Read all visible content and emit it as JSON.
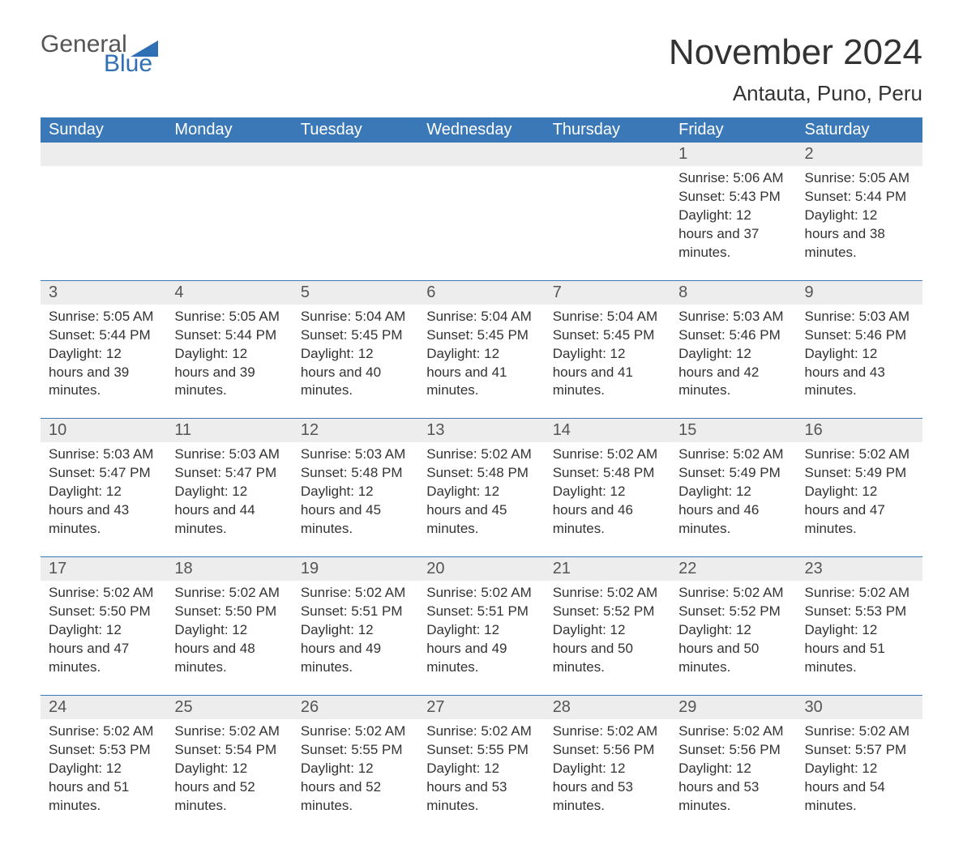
{
  "brand": {
    "word1": "General",
    "word2": "Blue",
    "word1_color": "#555555",
    "word2_color": "#2f6fb3",
    "triangle_color": "#2f6fb3"
  },
  "title": "November 2024",
  "location": "Antauta, Puno, Peru",
  "colors": {
    "header_bg": "#3b78b8",
    "header_text": "#ffffff",
    "daynum_bg": "#ededed",
    "border": "#3b78b8",
    "text": "#333333"
  },
  "day_headers": [
    "Sunday",
    "Monday",
    "Tuesday",
    "Wednesday",
    "Thursday",
    "Friday",
    "Saturday"
  ],
  "weeks": [
    [
      null,
      null,
      null,
      null,
      null,
      {
        "n": "1",
        "sunrise": "5:06 AM",
        "sunset": "5:43 PM",
        "daylight": "12 hours and 37 minutes."
      },
      {
        "n": "2",
        "sunrise": "5:05 AM",
        "sunset": "5:44 PM",
        "daylight": "12 hours and 38 minutes."
      }
    ],
    [
      {
        "n": "3",
        "sunrise": "5:05 AM",
        "sunset": "5:44 PM",
        "daylight": "12 hours and 39 minutes."
      },
      {
        "n": "4",
        "sunrise": "5:05 AM",
        "sunset": "5:44 PM",
        "daylight": "12 hours and 39 minutes."
      },
      {
        "n": "5",
        "sunrise": "5:04 AM",
        "sunset": "5:45 PM",
        "daylight": "12 hours and 40 minutes."
      },
      {
        "n": "6",
        "sunrise": "5:04 AM",
        "sunset": "5:45 PM",
        "daylight": "12 hours and 41 minutes."
      },
      {
        "n": "7",
        "sunrise": "5:04 AM",
        "sunset": "5:45 PM",
        "daylight": "12 hours and 41 minutes."
      },
      {
        "n": "8",
        "sunrise": "5:03 AM",
        "sunset": "5:46 PM",
        "daylight": "12 hours and 42 minutes."
      },
      {
        "n": "9",
        "sunrise": "5:03 AM",
        "sunset": "5:46 PM",
        "daylight": "12 hours and 43 minutes."
      }
    ],
    [
      {
        "n": "10",
        "sunrise": "5:03 AM",
        "sunset": "5:47 PM",
        "daylight": "12 hours and 43 minutes."
      },
      {
        "n": "11",
        "sunrise": "5:03 AM",
        "sunset": "5:47 PM",
        "daylight": "12 hours and 44 minutes."
      },
      {
        "n": "12",
        "sunrise": "5:03 AM",
        "sunset": "5:48 PM",
        "daylight": "12 hours and 45 minutes."
      },
      {
        "n": "13",
        "sunrise": "5:02 AM",
        "sunset": "5:48 PM",
        "daylight": "12 hours and 45 minutes."
      },
      {
        "n": "14",
        "sunrise": "5:02 AM",
        "sunset": "5:48 PM",
        "daylight": "12 hours and 46 minutes."
      },
      {
        "n": "15",
        "sunrise": "5:02 AM",
        "sunset": "5:49 PM",
        "daylight": "12 hours and 46 minutes."
      },
      {
        "n": "16",
        "sunrise": "5:02 AM",
        "sunset": "5:49 PM",
        "daylight": "12 hours and 47 minutes."
      }
    ],
    [
      {
        "n": "17",
        "sunrise": "5:02 AM",
        "sunset": "5:50 PM",
        "daylight": "12 hours and 47 minutes."
      },
      {
        "n": "18",
        "sunrise": "5:02 AM",
        "sunset": "5:50 PM",
        "daylight": "12 hours and 48 minutes."
      },
      {
        "n": "19",
        "sunrise": "5:02 AM",
        "sunset": "5:51 PM",
        "daylight": "12 hours and 49 minutes."
      },
      {
        "n": "20",
        "sunrise": "5:02 AM",
        "sunset": "5:51 PM",
        "daylight": "12 hours and 49 minutes."
      },
      {
        "n": "21",
        "sunrise": "5:02 AM",
        "sunset": "5:52 PM",
        "daylight": "12 hours and 50 minutes."
      },
      {
        "n": "22",
        "sunrise": "5:02 AM",
        "sunset": "5:52 PM",
        "daylight": "12 hours and 50 minutes."
      },
      {
        "n": "23",
        "sunrise": "5:02 AM",
        "sunset": "5:53 PM",
        "daylight": "12 hours and 51 minutes."
      }
    ],
    [
      {
        "n": "24",
        "sunrise": "5:02 AM",
        "sunset": "5:53 PM",
        "daylight": "12 hours and 51 minutes."
      },
      {
        "n": "25",
        "sunrise": "5:02 AM",
        "sunset": "5:54 PM",
        "daylight": "12 hours and 52 minutes."
      },
      {
        "n": "26",
        "sunrise": "5:02 AM",
        "sunset": "5:55 PM",
        "daylight": "12 hours and 52 minutes."
      },
      {
        "n": "27",
        "sunrise": "5:02 AM",
        "sunset": "5:55 PM",
        "daylight": "12 hours and 53 minutes."
      },
      {
        "n": "28",
        "sunrise": "5:02 AM",
        "sunset": "5:56 PM",
        "daylight": "12 hours and 53 minutes."
      },
      {
        "n": "29",
        "sunrise": "5:02 AM",
        "sunset": "5:56 PM",
        "daylight": "12 hours and 53 minutes."
      },
      {
        "n": "30",
        "sunrise": "5:02 AM",
        "sunset": "5:57 PM",
        "daylight": "12 hours and 54 minutes."
      }
    ]
  ],
  "labels": {
    "sunrise": "Sunrise: ",
    "sunset": "Sunset: ",
    "daylight": "Daylight: "
  }
}
